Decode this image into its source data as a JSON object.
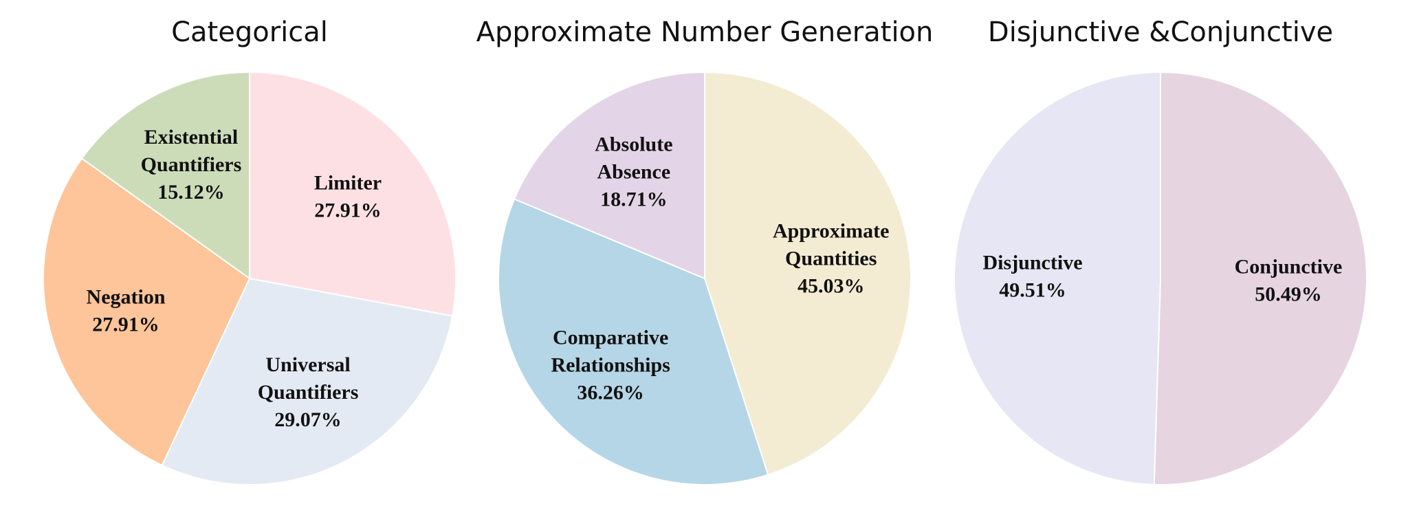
{
  "chart_data": [
    {
      "type": "pie",
      "title": "Categorical",
      "slices": [
        {
          "label_lines": [
            "Limiter"
          ],
          "pct_label": "27.91%",
          "value": 27.91,
          "color": "#fde0e4"
        },
        {
          "label_lines": [
            "Universal",
            "Quantifiers"
          ],
          "pct_label": "29.07%",
          "value": 29.07,
          "color": "#e4eaf3"
        },
        {
          "label_lines": [
            "Negation"
          ],
          "pct_label": "27.91%",
          "value": 27.91,
          "color": "#fdc599"
        },
        {
          "label_lines": [
            "Existential",
            "Quantifiers"
          ],
          "pct_label": "15.12%",
          "value": 15.12,
          "color": "#ccdcb9"
        }
      ]
    },
    {
      "type": "pie",
      "title": "Approximate Number Generation",
      "slices": [
        {
          "label_lines": [
            "Approximate",
            "Quantities"
          ],
          "pct_label": "45.03%",
          "value": 45.03,
          "color": "#f3ecd3"
        },
        {
          "label_lines": [
            "Comparative",
            "Relationships"
          ],
          "pct_label": "36.26%",
          "value": 36.26,
          "color": "#b5d6e6"
        },
        {
          "label_lines": [
            "Absolute",
            "Absence"
          ],
          "pct_label": "18.71%",
          "value": 18.71,
          "color": "#e3d4e7"
        }
      ]
    },
    {
      "type": "pie",
      "title": "Disjunctive &Conjunctive",
      "slices": [
        {
          "label_lines": [
            "Conjunctive"
          ],
          "pct_label": "50.49%",
          "value": 50.49,
          "color": "#e6d4e1"
        },
        {
          "label_lines": [
            "Disjunctive"
          ],
          "pct_label": "49.51%",
          "value": 49.51,
          "color": "#e6e6f4"
        }
      ]
    }
  ]
}
